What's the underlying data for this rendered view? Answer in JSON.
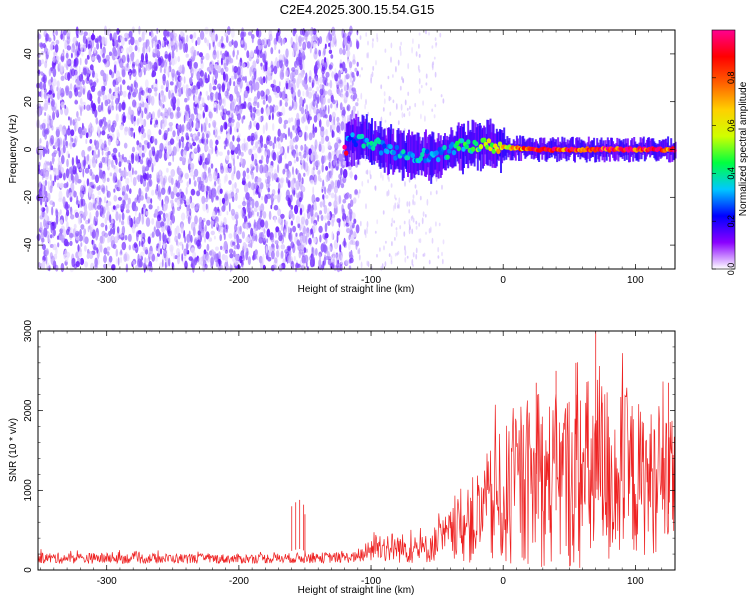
{
  "title": "C2E4.2025.300.15.54.G15",
  "chart_data": [
    {
      "type": "heatmap",
      "title": "C2E4.2025.300.15.54.G15",
      "xlabel": "Height of straight line (km)",
      "ylabel": "Frequency (Hz)",
      "xlim": [
        -352,
        130
      ],
      "ylim": [
        -50,
        50
      ],
      "x_ticks": [
        -300,
        -200,
        -100,
        0,
        100
      ],
      "y_ticks": [
        -40,
        -20,
        0,
        20,
        40
      ],
      "colorbar": {
        "label": "Normalized spectral amplitude",
        "range": [
          0,
          1
        ],
        "ticks": [
          0.0,
          0.2,
          0.4,
          0.6,
          0.8
        ],
        "tick_labels": [
          "0.0",
          "0.2",
          "0.4",
          "0.6",
          "0.8"
        ],
        "colormap": [
          "#ffffff",
          "#8a00ff",
          "#0000ff",
          "#00c8ff",
          "#00ff40",
          "#d0ff00",
          "#ffd000",
          "#ff6000",
          "#ff0000",
          "#ff0090"
        ]
      },
      "signal_band": {
        "x_start": -120,
        "x_end": 130,
        "center_freq": 0,
        "segments": [
          {
            "x": -118,
            "f": 5,
            "amp": 0.3
          },
          {
            "x": -100,
            "f": 3,
            "amp": 0.35
          },
          {
            "x": -85,
            "f": -1,
            "amp": 0.3
          },
          {
            "x": -70,
            "f": -2,
            "amp": 0.35
          },
          {
            "x": -50,
            "f": -3,
            "amp": 0.3
          },
          {
            "x": -35,
            "f": 1,
            "amp": 0.4
          },
          {
            "x": -20,
            "f": 2,
            "amp": 0.45
          },
          {
            "x": 0,
            "f": 1,
            "amp": 0.65
          },
          {
            "x": 30,
            "f": 0,
            "amp": 0.85
          },
          {
            "x": 60,
            "f": 0,
            "amp": 0.9
          },
          {
            "x": 100,
            "f": 0,
            "amp": 0.9
          },
          {
            "x": 130,
            "f": 0,
            "amp": 0.85
          }
        ]
      },
      "noise_region": {
        "x_start": -352,
        "x_end": -110,
        "freq_range": [
          -50,
          50
        ]
      }
    },
    {
      "type": "line",
      "xlabel": "Height of straight line (km)",
      "ylabel": "SNR (10 * v/v)",
      "xlim": [
        -352,
        130
      ],
      "ylim": [
        0,
        3000
      ],
      "x_ticks": [
        -300,
        -200,
        -100,
        0,
        100
      ],
      "y_ticks": [
        0,
        1000,
        2000,
        3000
      ],
      "line_color": "#ee2222",
      "envelope": [
        {
          "x": -352,
          "mean": 150,
          "spread": 70
        },
        {
          "x": -200,
          "mean": 140,
          "spread": 60
        },
        {
          "x": -110,
          "mean": 160,
          "spread": 70
        },
        {
          "x": -95,
          "mean": 300,
          "spread": 200
        },
        {
          "x": -60,
          "mean": 250,
          "spread": 180
        },
        {
          "x": -40,
          "mean": 450,
          "spread": 300
        },
        {
          "x": -20,
          "mean": 650,
          "spread": 600
        },
        {
          "x": 0,
          "mean": 900,
          "spread": 900
        },
        {
          "x": 20,
          "mean": 1050,
          "spread": 1000
        },
        {
          "x": 50,
          "mean": 1150,
          "spread": 1150
        },
        {
          "x": 70,
          "mean": 1200,
          "spread": 1300
        },
        {
          "x": 100,
          "mean": 1150,
          "spread": 1000
        },
        {
          "x": 130,
          "mean": 1050,
          "spread": 800
        }
      ],
      "spikes": [
        {
          "x": -160,
          "y": 800
        },
        {
          "x": -157,
          "y": 850
        },
        {
          "x": -154,
          "y": 880
        },
        {
          "x": -151,
          "y": 820
        },
        {
          "x": -150,
          "y": 700
        },
        {
          "x": 25,
          "y": 2350
        },
        {
          "x": 40,
          "y": 2500
        },
        {
          "x": 55,
          "y": 2600
        },
        {
          "x": 70,
          "y": 3000
        },
        {
          "x": 75,
          "y": 2100
        },
        {
          "x": 125,
          "y": 2350
        }
      ]
    }
  ]
}
